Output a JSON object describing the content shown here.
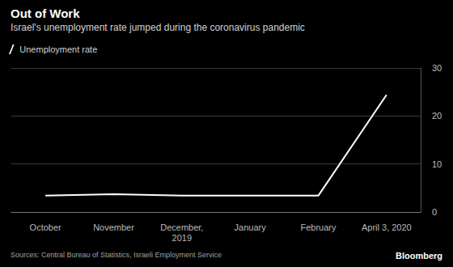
{
  "chart_data": {
    "type": "line",
    "title": "Out of Work",
    "subtitle": "Israel's unemployment rate jumped during the coronavirus pandemic",
    "source": "Sources: Central Bureau of Statistics, Israeli Employment Service",
    "credit": "Bloomberg",
    "categories": [
      "October",
      "November",
      "December,\n2019",
      "January",
      "February",
      "April 3, 2020"
    ],
    "series": [
      {
        "name": "Unemployment rate",
        "color": "#ffffff",
        "values": [
          3.4,
          3.7,
          3.4,
          3.4,
          3.4,
          24.4
        ]
      }
    ],
    "ylim": [
      0,
      30
    ],
    "yticks": [
      0,
      10,
      20,
      30
    ],
    "grid": true,
    "legend": "top-left"
  }
}
